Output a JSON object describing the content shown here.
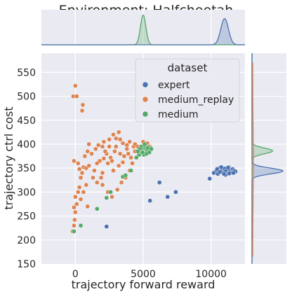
{
  "chart_data": {
    "type": "scatter",
    "title": "Environment: Halfcheetah",
    "xlabel": "trajectory forward reward",
    "ylabel": "trajectory ctrl cost",
    "xlim": [
      -2500,
      12500
    ],
    "ylim": [
      150,
      590
    ],
    "xticks": [
      0,
      5000,
      10000
    ],
    "yticks": [
      150,
      200,
      250,
      300,
      350,
      400,
      450,
      500,
      550
    ],
    "grid": true,
    "legend": {
      "title": "dataset",
      "placement": "top-right",
      "entries": [
        {
          "name": "expert",
          "color": "#4c72b0"
        },
        {
          "name": "medium_replay",
          "color": "#dd8452"
        },
        {
          "name": "medium",
          "color": "#55a868"
        }
      ]
    },
    "marginals": {
      "top_type": "kde",
      "right_type": "kde",
      "x_peaks": [
        {
          "series": "medium",
          "center": 5000,
          "height": 0.85,
          "spread": 200
        },
        {
          "series": "expert",
          "center": 11000,
          "height": 0.75,
          "spread": 280
        }
      ],
      "y_peaks": [
        {
          "series": "medium",
          "center": 386,
          "height": 0.6,
          "spread": 6
        },
        {
          "series": "expert",
          "center": 344,
          "height": 0.9,
          "spread": 6
        },
        {
          "series": "medium_replay",
          "center": 360,
          "height": 0.02,
          "spread": 80
        }
      ]
    },
    "series": [
      {
        "name": "expert",
        "color": "#4c72b0",
        "points": [
          [
            2300,
            228
          ],
          [
            5500,
            282
          ],
          [
            6200,
            320
          ],
          [
            6800,
            290
          ],
          [
            7400,
            300
          ],
          [
            9900,
            328
          ],
          [
            10200,
            340
          ],
          [
            10400,
            345
          ],
          [
            10500,
            338
          ],
          [
            10600,
            350
          ],
          [
            10700,
            343
          ],
          [
            10800,
            347
          ],
          [
            10900,
            341
          ],
          [
            11000,
            349
          ],
          [
            11100,
            344
          ],
          [
            11200,
            338
          ],
          [
            11300,
            352
          ],
          [
            11400,
            346
          ],
          [
            11500,
            341
          ],
          [
            11600,
            348
          ],
          [
            11700,
            345
          ],
          [
            11800,
            343
          ],
          [
            10750,
            352
          ],
          [
            11050,
            336
          ],
          [
            11350,
            339
          ],
          [
            10450,
            348
          ],
          [
            11250,
            351
          ],
          [
            10950,
            338
          ],
          [
            11650,
            340
          ],
          [
            10650,
            342
          ]
        ]
      },
      {
        "name": "medium_replay",
        "color": "#dd8452",
        "points": [
          [
            -150,
            500
          ],
          [
            0,
            522
          ],
          [
            100,
            500
          ],
          [
            500,
            470
          ],
          [
            550,
            482
          ],
          [
            -200,
            218
          ],
          [
            -100,
            230
          ],
          [
            -50,
            242
          ],
          [
            0,
            258
          ],
          [
            -100,
            268
          ],
          [
            100,
            275
          ],
          [
            0,
            290
          ],
          [
            200,
            300
          ],
          [
            300,
            310
          ],
          [
            400,
            330
          ],
          [
            500,
            340
          ],
          [
            300,
            348
          ],
          [
            200,
            360
          ],
          [
            -100,
            365
          ],
          [
            600,
            352
          ],
          [
            800,
            350
          ],
          [
            1000,
            355
          ],
          [
            700,
            375
          ],
          [
            900,
            385
          ],
          [
            1200,
            380
          ],
          [
            1000,
            400
          ],
          [
            1500,
            390
          ],
          [
            1700,
            398
          ],
          [
            2000,
            395
          ],
          [
            2100,
            405
          ],
          [
            2500,
            410
          ],
          [
            2800,
            420
          ],
          [
            3200,
            425
          ],
          [
            3000,
            412
          ],
          [
            3500,
            402
          ],
          [
            3800,
            398
          ],
          [
            4000,
            405
          ],
          [
            4300,
            395
          ],
          [
            2300,
            380
          ],
          [
            2600,
            372
          ],
          [
            2900,
            385
          ],
          [
            3300,
            380
          ],
          [
            3600,
            375
          ],
          [
            3900,
            380
          ],
          [
            1800,
            365
          ],
          [
            2100,
            370
          ],
          [
            2400,
            360
          ],
          [
            1300,
            330
          ],
          [
            1600,
            320
          ],
          [
            2000,
            315
          ],
          [
            2400,
            300
          ],
          [
            2700,
            290
          ],
          [
            3100,
            305
          ],
          [
            3400,
            320
          ],
          [
            3700,
            330
          ],
          [
            4000,
            345
          ],
          [
            4200,
            360
          ],
          [
            4500,
            372
          ],
          [
            4700,
            385
          ],
          [
            4900,
            392
          ],
          [
            5100,
            398
          ],
          [
            5300,
            402
          ],
          [
            5500,
            395
          ],
          [
            5000,
            405
          ],
          [
            4800,
            380
          ],
          [
            4600,
            395
          ],
          [
            4400,
            385
          ],
          [
            3500,
            362
          ],
          [
            3200,
            355
          ],
          [
            2800,
            345
          ],
          [
            2000,
            340
          ],
          [
            1600,
            360
          ],
          [
            800,
            315
          ],
          [
            600,
            300
          ],
          [
            400,
            285
          ],
          [
            900,
            270
          ],
          [
            1400,
            345
          ],
          [
            1900,
            330
          ],
          [
            3000,
            395
          ],
          [
            3300,
            410
          ],
          [
            3800,
            390
          ],
          [
            4100,
            372
          ],
          [
            4400,
            400
          ],
          [
            2200,
            385
          ],
          [
            2500,
            395
          ],
          [
            2700,
            365
          ]
        ]
      },
      {
        "name": "medium",
        "color": "#55a868",
        "points": [
          [
            -100,
            218
          ],
          [
            400,
            230
          ],
          [
            1600,
            265
          ],
          [
            2300,
            288
          ],
          [
            2600,
            300
          ],
          [
            3500,
            332
          ],
          [
            3700,
            335
          ],
          [
            4100,
            345
          ],
          [
            4500,
            372
          ],
          [
            4700,
            378
          ],
          [
            4800,
            384
          ],
          [
            4900,
            388
          ],
          [
            5000,
            392
          ],
          [
            5100,
            382
          ],
          [
            5200,
            390
          ],
          [
            5300,
            386
          ],
          [
            5400,
            394
          ],
          [
            5500,
            388
          ],
          [
            4850,
            395
          ],
          [
            5050,
            378
          ],
          [
            5150,
            396
          ],
          [
            5250,
            380
          ],
          [
            4950,
            383
          ],
          [
            5350,
            392
          ],
          [
            4750,
            390
          ],
          [
            5450,
            383
          ],
          [
            5100,
            400
          ],
          [
            4600,
            385
          ],
          [
            5600,
            390
          ]
        ]
      }
    ]
  }
}
